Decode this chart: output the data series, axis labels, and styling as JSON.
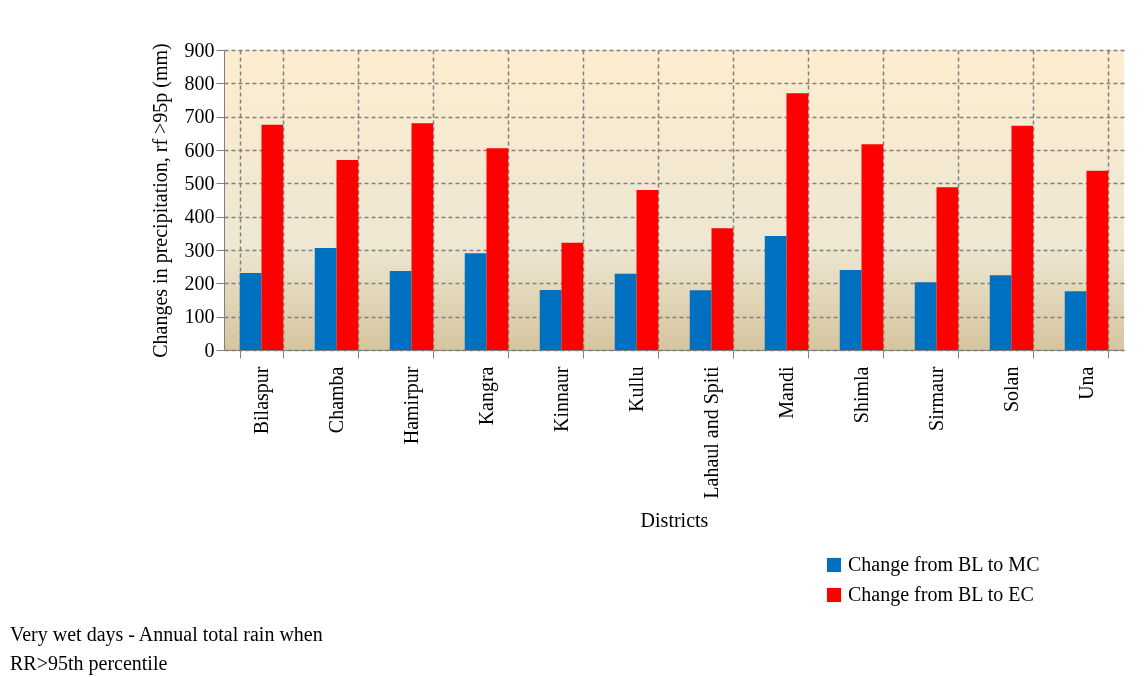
{
  "chart_data": {
    "type": "bar",
    "xlabel": "Districts",
    "ylabel": "Changes in precipitation, rf >95p (mm)",
    "categories": [
      "Bilaspur",
      "Chamba",
      "Hamirpur",
      "Kangra",
      "Kinnaur",
      "Kullu",
      "Lahaul and Spiti",
      "Mandi",
      "Shimla",
      "Sirmaur",
      "Solan",
      "Una"
    ],
    "series": [
      {
        "name": "Change from BL to MC",
        "color": "#0070c0",
        "values": [
          231,
          306,
          237,
          290,
          180,
          229,
          179,
          342,
          240,
          203,
          224,
          176
        ]
      },
      {
        "name": "Change from BL to EC",
        "color": "#ff0000",
        "values": [
          676,
          570,
          680,
          605,
          322,
          480,
          365,
          770,
          617,
          488,
          673,
          538
        ]
      }
    ],
    "ylim": [
      0,
      900
    ],
    "yticks": [
      0,
      100,
      200,
      300,
      400,
      500,
      600,
      700,
      800,
      900
    ],
    "grid": true,
    "legend": "bottom right",
    "annotations": [
      "Very wet days - Annual total rain when RR>95th percentile"
    ]
  }
}
